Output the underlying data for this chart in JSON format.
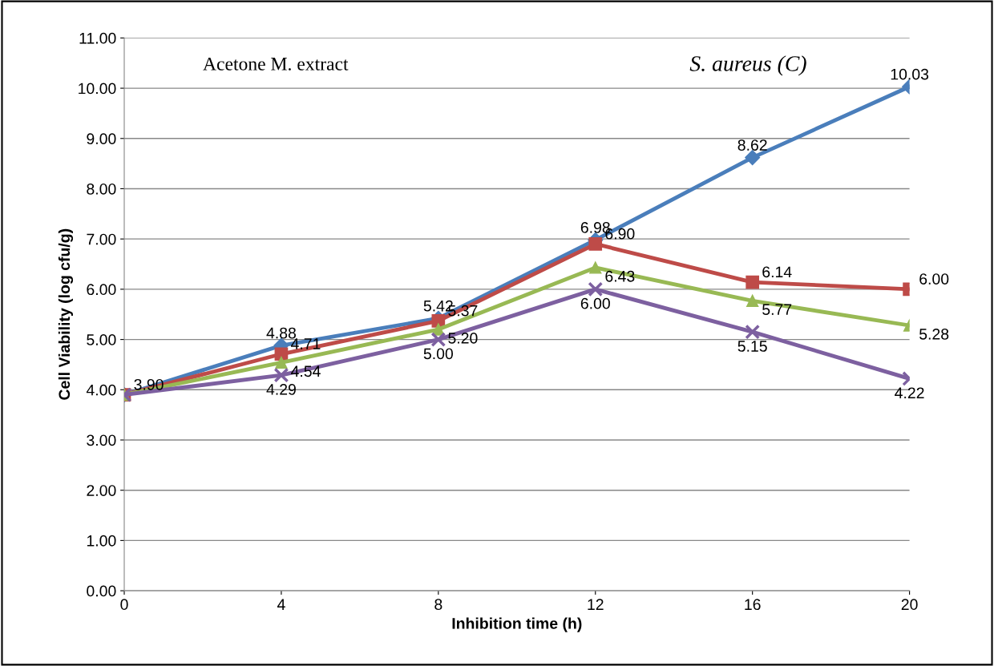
{
  "chart_data": {
    "type": "line",
    "xlabel": "Inhibition time (h)",
    "ylabel": "Cell Viability (log cfu/g)",
    "x": [
      0,
      4,
      8,
      12,
      16,
      20
    ],
    "xlim": [
      0,
      20
    ],
    "xticks": [
      0,
      4,
      8,
      12,
      16,
      20
    ],
    "ylim": [
      0,
      11
    ],
    "yticks": [
      {
        "value": 0,
        "label": "0.00"
      },
      {
        "value": 1,
        "label": "1.00"
      },
      {
        "value": 2,
        "label": "2.00"
      },
      {
        "value": 3,
        "label": "3.00"
      },
      {
        "value": 4,
        "label": "4.00"
      },
      {
        "value": 5,
        "label": "5.00"
      },
      {
        "value": 6,
        "label": "6.00"
      },
      {
        "value": 7,
        "label": "7.00"
      },
      {
        "value": 8,
        "label": "8.00"
      },
      {
        "value": 9,
        "label": "9.00"
      },
      {
        "value": 10,
        "label": "10.00"
      },
      {
        "value": 11,
        "label": "11.00"
      }
    ],
    "grid": "y",
    "legend": false,
    "line_style": "solid",
    "annotations": [
      "Acetone M. extract",
      "S. aureus (C)"
    ],
    "series": [
      {
        "color": "#4a7ebb",
        "marker": "diamond",
        "values": [
          3.9,
          4.88,
          5.42,
          6.98,
          8.62,
          10.03
        ],
        "value_labels": [
          null,
          "4.88",
          "5.42",
          "6.98",
          "8.62",
          "10.03"
        ]
      },
      {
        "color": "#be4b48",
        "marker": "square",
        "values": [
          3.9,
          4.71,
          5.37,
          6.9,
          6.14,
          6.0
        ],
        "value_labels": [
          "3.90",
          "4.71",
          "5.37",
          "6.90",
          "6.14",
          "6.00"
        ]
      },
      {
        "color": "#98b954",
        "marker": "triangle",
        "values": [
          3.9,
          4.54,
          5.2,
          6.43,
          5.77,
          5.28
        ],
        "value_labels": [
          null,
          "4.54",
          "5.20",
          "6.43",
          "5.77",
          "5.28"
        ]
      },
      {
        "color": "#7d60a0",
        "marker": "cross",
        "values": [
          3.9,
          4.29,
          5.0,
          6.0,
          5.15,
          4.22
        ],
        "value_labels": [
          null,
          "4.29",
          "5.00",
          "6.00",
          "5.15",
          "4.22"
        ]
      }
    ]
  }
}
